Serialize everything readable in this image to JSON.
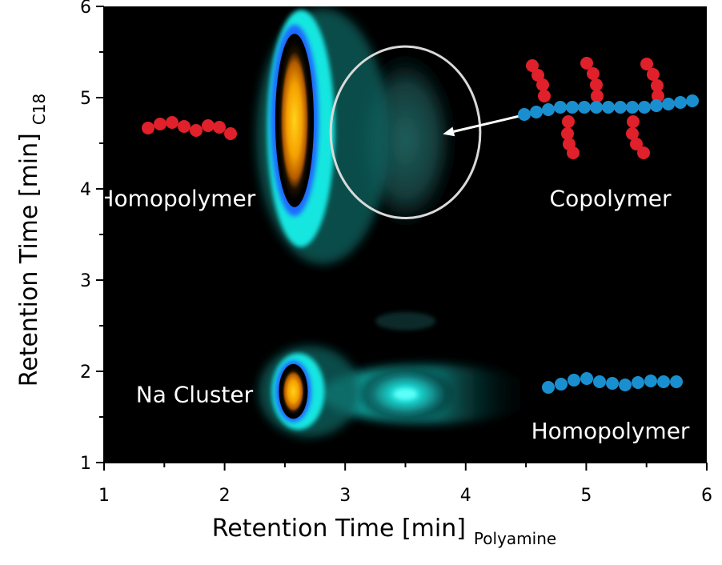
{
  "chart_data": {
    "type": "heatmap",
    "xlabel": "Retention Time [min]",
    "xlabel_subscript": "Polyamine",
    "ylabel": "Retention Time [min]",
    "ylabel_subscript": "C18",
    "xlim": [
      1,
      6
    ],
    "ylim": [
      1,
      6
    ],
    "x_ticks": [
      "1",
      "2",
      "3",
      "4",
      "5",
      "6"
    ],
    "y_ticks": [
      "1",
      "2",
      "3",
      "4",
      "5",
      "6"
    ],
    "colors": {
      "background": "#000000",
      "low": "#0d3a3a",
      "mid": "#19e6e0",
      "edge": "#2a7fff",
      "high": "#f5a000",
      "homopolymer_red": "#e0202a",
      "homopolymer_blue": "#1a8fd0",
      "ellipse": "#d9d9d9"
    },
    "peaks": [
      {
        "x": 2.58,
        "y": 4.75,
        "intensity": "high"
      },
      {
        "x": 2.57,
        "y": 1.78,
        "intensity": "high"
      },
      {
        "x": 3.5,
        "y": 1.75,
        "intensity": "medium"
      },
      {
        "x": 3.5,
        "y": 4.75,
        "intensity": "low"
      },
      {
        "x": 3.5,
        "y": 2.55,
        "intensity": "very low"
      }
    ],
    "annotations": [
      {
        "text": "Homopolymer",
        "x": 1.6,
        "y": 3.9
      },
      {
        "text": "Copolymer",
        "x": 5.2,
        "y": 3.9
      },
      {
        "text": "Na Cluster",
        "x": 1.75,
        "y": 1.75
      },
      {
        "text": "Homopolymer",
        "x": 5.2,
        "y": 1.35
      }
    ],
    "highlight_ellipse": {
      "cx": 3.5,
      "cy": 4.62,
      "rx": 0.62,
      "ry": 0.94
    },
    "arrow": {
      "from": [
        4.55,
        4.83
      ],
      "to": [
        3.81,
        4.6
      ]
    },
    "grid": false,
    "legend": "none"
  }
}
